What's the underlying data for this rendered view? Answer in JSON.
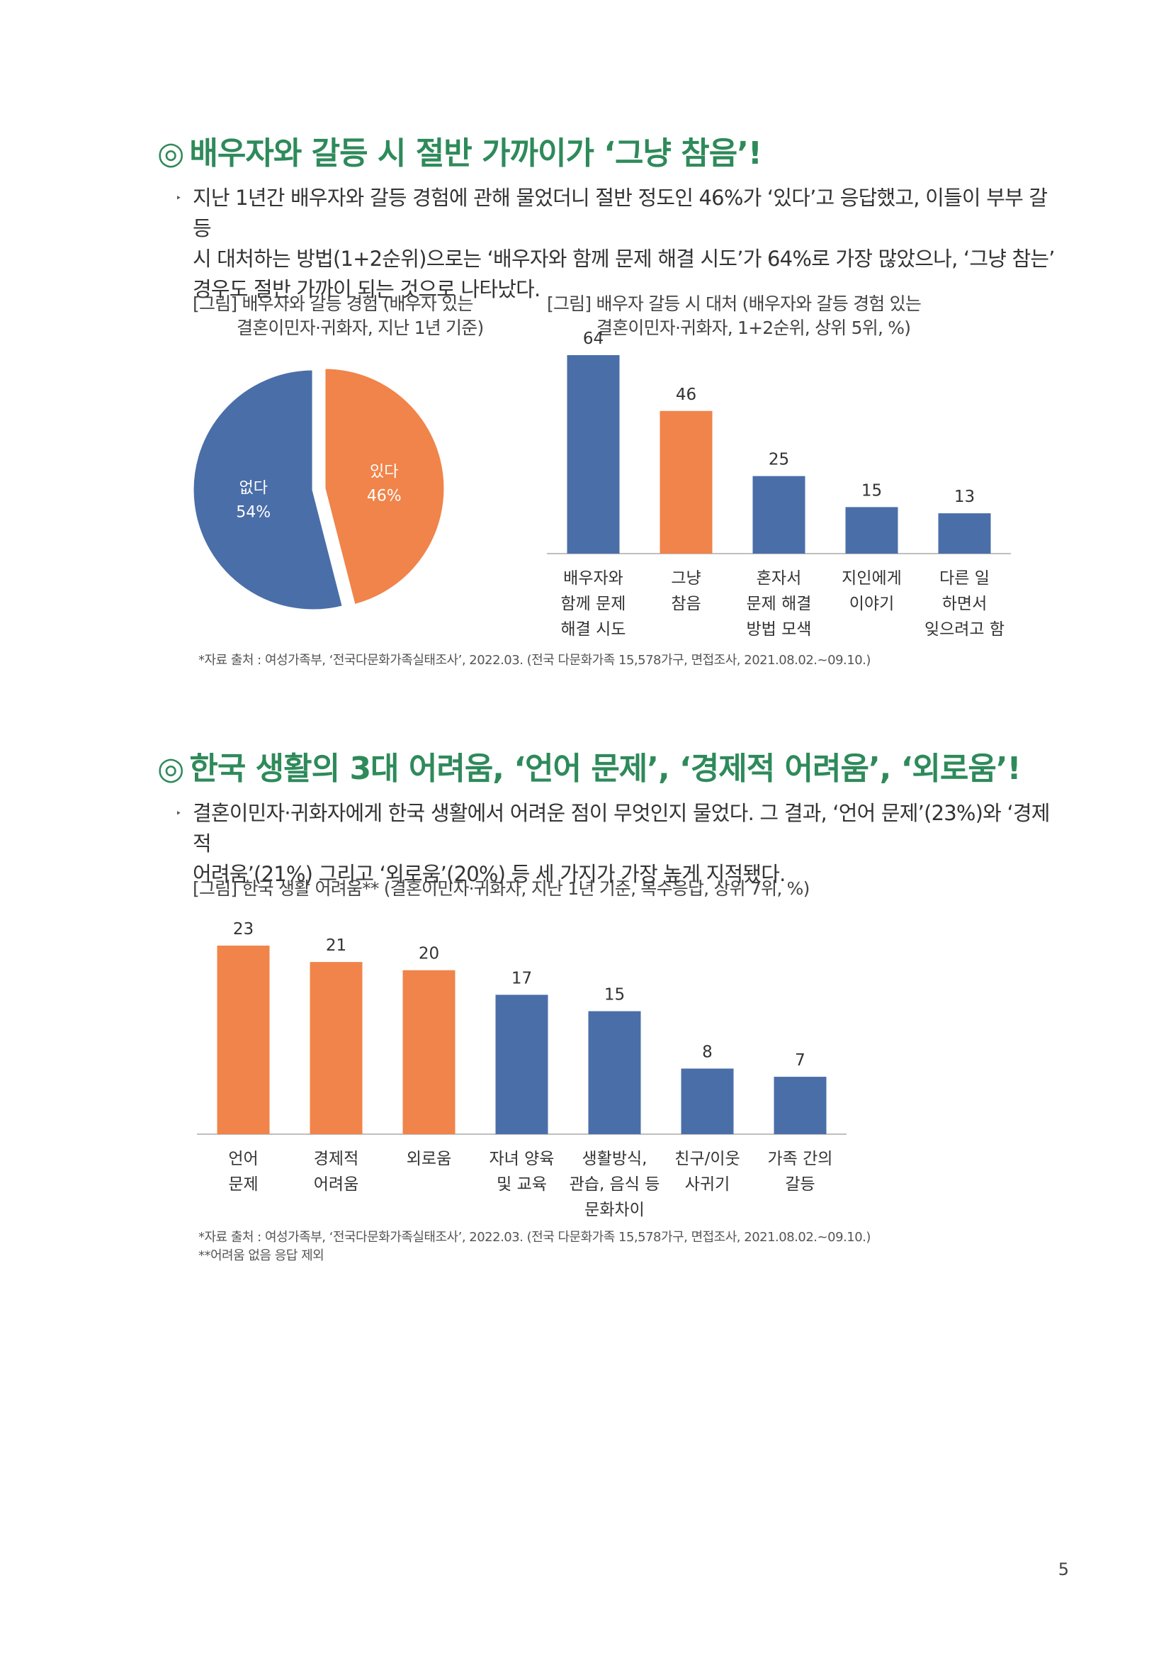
{
  "section1": {
    "mark": "◎",
    "title": "배우자와 갈등 시 절반 가까이가 ‘그냥 참음’!",
    "bullet": "‣",
    "paragraph_lines": [
      "지난 1년간 배우자와 갈등 경험에 관해 물었더니 절반 정도인 46%가 ‘있다’고 응답했고, 이들이 부부 갈등",
      "시 대처하는 방법(1+2순위)으로는 ‘배우자와 함께 문제 해결 시도’가 64%로 가장 많았으나, ‘그냥 참는’",
      "경우도 절반 가까이 되는 것으로 나타났다."
    ],
    "pie_caption": [
      "[그림] 배우자와 갈등 경험 (배우자 있는",
      "결혼이민자·귀화자, 지난 1년 기준)"
    ],
    "bar_caption": [
      "[그림] 배우자 갈등 시 대처 (배우자와 갈등 경험 있는",
      "결혼이민자·귀화자, 1+2순위, 상위 5위, %)"
    ],
    "source": "*자료 출처 : 여성가족부, ‘전국다문화가족실태조사’, 2022.03. (전국 다문화가족 15,578가구, 면접조사, 2021.08.02.~09.10.)"
  },
  "section2": {
    "mark": "◎",
    "title": "한국 생활의 3대 어려움, ‘언어 문제’, ‘경제적 어려움’, ‘외로움’!",
    "bullet": "‣",
    "paragraph_lines": [
      "결혼이민자·귀화자에게 한국 생활에서 어려운 점이 무엇인지 물었다. 그 결과, ‘언어 문제’(23%)와 ‘경제적",
      "어려움’(21%) 그리고 ‘외로움’(20%) 등 세 가지가 가장 높게 지적됐다."
    ],
    "bar_caption": "[그림] 한국 생활 어려움** (결혼이민자·귀화자, 지난 1년 기준, 복수응답, 상위 7위, %)",
    "source": "*자료 출처 : 여성가족부, ‘전국다문화가족실태조사’, 2022.03. (전국 다문화가족 15,578가구, 면접조사, 2021.08.02.~09.10.)",
    "note": "**어려움 없음 응답 제외"
  },
  "page_number": "5",
  "colors": {
    "blue": "#4a6ea8",
    "orange": "#f0844a",
    "heading_green": "#2e8a5a"
  },
  "chart_data": [
    {
      "type": "pie",
      "slices": [
        {
          "label": "있다",
          "value": 46,
          "value_label": "46%",
          "color": "#f0844a"
        },
        {
          "label": "없다",
          "value": 54,
          "value_label": "54%",
          "color": "#4a6ea8"
        }
      ]
    },
    {
      "type": "bar",
      "categories": [
        [
          "배우자와",
          "함께 문제",
          "해결 시도"
        ],
        [
          "그냥",
          "참음"
        ],
        [
          "혼자서",
          "문제 해결",
          "방법 모색"
        ],
        [
          "지인에게",
          "이야기"
        ],
        [
          "다른 일",
          "하면서",
          "잊으려고 함"
        ]
      ],
      "values": [
        64,
        46,
        25,
        15,
        13
      ],
      "colors": [
        "#4a6ea8",
        "#f0844a",
        "#4a6ea8",
        "#4a6ea8",
        "#4a6ea8"
      ],
      "ylim": [
        0,
        64
      ]
    },
    {
      "type": "bar",
      "categories": [
        [
          "언어",
          "문제"
        ],
        [
          "경제적",
          "어려움"
        ],
        [
          "외로움"
        ],
        [
          "자녀 양육",
          "및 교육"
        ],
        [
          "생활방식,",
          "관습, 음식 등",
          "문화차이"
        ],
        [
          "친구/이웃",
          "사귀기"
        ],
        [
          "가족 간의",
          "갈등"
        ]
      ],
      "values": [
        23,
        21,
        20,
        17,
        15,
        8,
        7
      ],
      "colors": [
        "#f0844a",
        "#f0844a",
        "#f0844a",
        "#4a6ea8",
        "#4a6ea8",
        "#4a6ea8",
        "#4a6ea8"
      ],
      "ylim": [
        0,
        23
      ]
    }
  ]
}
